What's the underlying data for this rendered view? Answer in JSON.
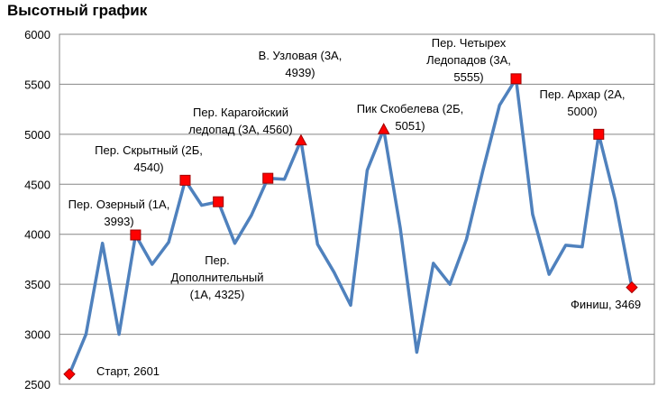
{
  "chart_data": {
    "type": "line",
    "title": "Высотный график",
    "xlabel": "",
    "ylabel": "",
    "ylim": [
      2500,
      6000
    ],
    "yticks": [
      2500,
      3000,
      3500,
      4000,
      4500,
      5000,
      5500,
      6000
    ],
    "ytick_labels": [
      "2500",
      "3000",
      "3500",
      "4000",
      "4500",
      "5000",
      "5500",
      "6000"
    ],
    "grid": true,
    "legend": "none",
    "line_color": "#4F81BD",
    "marker_pass_color": "#FF0000",
    "marker_edge_color": "#A00000",
    "series": [
      {
        "values": [
          2601,
          3000,
          3910,
          3000,
          3993,
          3700,
          3920,
          4540,
          4290,
          4325,
          3910,
          4190,
          4560,
          4550,
          4939,
          3900,
          3620,
          3290,
          4640,
          5051,
          4060,
          2820,
          3710,
          3500,
          3950,
          4640,
          5290,
          5555,
          4200,
          3600,
          3890,
          3875,
          5000,
          4340,
          3469
        ]
      }
    ],
    "points": [
      {
        "index": 0,
        "marker": "diamond",
        "label": [
          "Старт, 2601"
        ]
      },
      {
        "index": 4,
        "marker": "square",
        "label": [
          "Пер. Озерный (1А,",
          "3993)"
        ]
      },
      {
        "index": 7,
        "marker": "square",
        "label": [
          "Пер. Скрытный (2Б,",
          "4540)"
        ]
      },
      {
        "index": 9,
        "marker": "square",
        "label": [
          "Пер.",
          "Дополнительный",
          "(1А, 4325)"
        ]
      },
      {
        "index": 12,
        "marker": "square",
        "label": [
          "Пер. Карагойский",
          "ледопад (3А, 4560)"
        ]
      },
      {
        "index": 14,
        "marker": "triangle",
        "label": [
          "В. Узловая (3А,",
          "4939)"
        ]
      },
      {
        "index": 19,
        "marker": "triangle",
        "label": [
          "Пик Скобелева (2Б,",
          "5051)"
        ]
      },
      {
        "index": 27,
        "marker": "square",
        "label": [
          "Пер. Четырех",
          "Ледопадов (3А,",
          "5555)"
        ]
      },
      {
        "index": 32,
        "marker": "square",
        "label": [
          "Пер. Архар (2А,",
          "5000)"
        ]
      },
      {
        "index": 34,
        "marker": "diamond",
        "label": [
          "Финиш, 3469"
        ]
      }
    ]
  }
}
